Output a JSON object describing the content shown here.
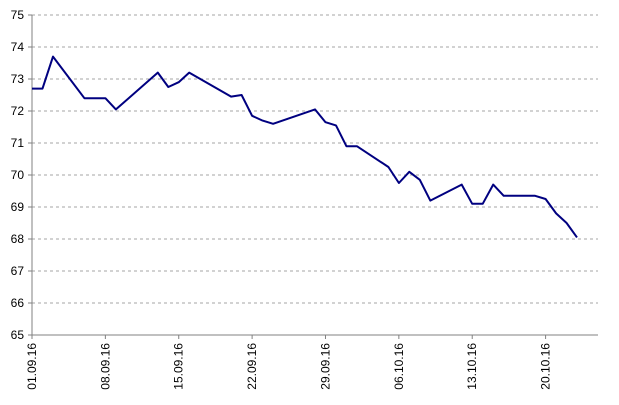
{
  "chart_data": {
    "type": "line",
    "title": "",
    "xlabel": "",
    "ylabel": "",
    "ylim": [
      65,
      75
    ],
    "yticks": [
      "65",
      "66",
      "67",
      "68",
      "69",
      "70",
      "71",
      "72",
      "73",
      "74",
      "75"
    ],
    "xlim": [
      "2016-09-01",
      "2016-10-25"
    ],
    "xticks": [
      {
        "date": "2016-09-01",
        "label": "01.09.16"
      },
      {
        "date": "2016-09-08",
        "label": "08.09.16"
      },
      {
        "date": "2016-09-15",
        "label": "15.09.16"
      },
      {
        "date": "2016-09-22",
        "label": "22.09.16"
      },
      {
        "date": "2016-09-29",
        "label": "29.09.16"
      },
      {
        "date": "2016-10-06",
        "label": "06.10.16"
      },
      {
        "date": "2016-10-13",
        "label": "13.10.16"
      },
      {
        "date": "2016-10-20",
        "label": "20.10.16"
      }
    ],
    "grid": "horizontal dashed",
    "series": [
      {
        "color": "#000080",
        "points": [
          [
            "2016-09-01",
            72.7
          ],
          [
            "2016-09-02",
            72.7
          ],
          [
            "2016-09-03",
            73.7
          ],
          [
            "2016-09-06",
            72.4
          ],
          [
            "2016-09-07",
            72.4
          ],
          [
            "2016-09-08",
            72.4
          ],
          [
            "2016-09-09",
            72.05
          ],
          [
            "2016-09-13",
            73.2
          ],
          [
            "2016-09-14",
            72.75
          ],
          [
            "2016-09-15",
            72.9
          ],
          [
            "2016-09-16",
            73.2
          ],
          [
            "2016-09-20",
            72.45
          ],
          [
            "2016-09-21",
            72.5
          ],
          [
            "2016-09-22",
            71.85
          ],
          [
            "2016-09-23",
            71.7
          ],
          [
            "2016-09-24",
            71.6
          ],
          [
            "2016-09-28",
            72.05
          ],
          [
            "2016-09-29",
            71.65
          ],
          [
            "2016-09-30",
            71.55
          ],
          [
            "2016-10-01",
            70.9
          ],
          [
            "2016-10-02",
            70.9
          ],
          [
            "2016-10-05",
            70.25
          ],
          [
            "2016-10-06",
            69.75
          ],
          [
            "2016-10-07",
            70.1
          ],
          [
            "2016-10-08",
            69.85
          ],
          [
            "2016-10-09",
            69.2
          ],
          [
            "2016-10-12",
            69.7
          ],
          [
            "2016-10-13",
            69.1
          ],
          [
            "2016-10-14",
            69.1
          ],
          [
            "2016-10-15",
            69.7
          ],
          [
            "2016-10-16",
            69.35
          ],
          [
            "2016-10-19",
            69.35
          ],
          [
            "2016-10-20",
            69.25
          ],
          [
            "2016-10-21",
            68.8
          ],
          [
            "2016-10-22",
            68.5
          ],
          [
            "2016-10-23",
            68.05
          ]
        ]
      }
    ]
  }
}
